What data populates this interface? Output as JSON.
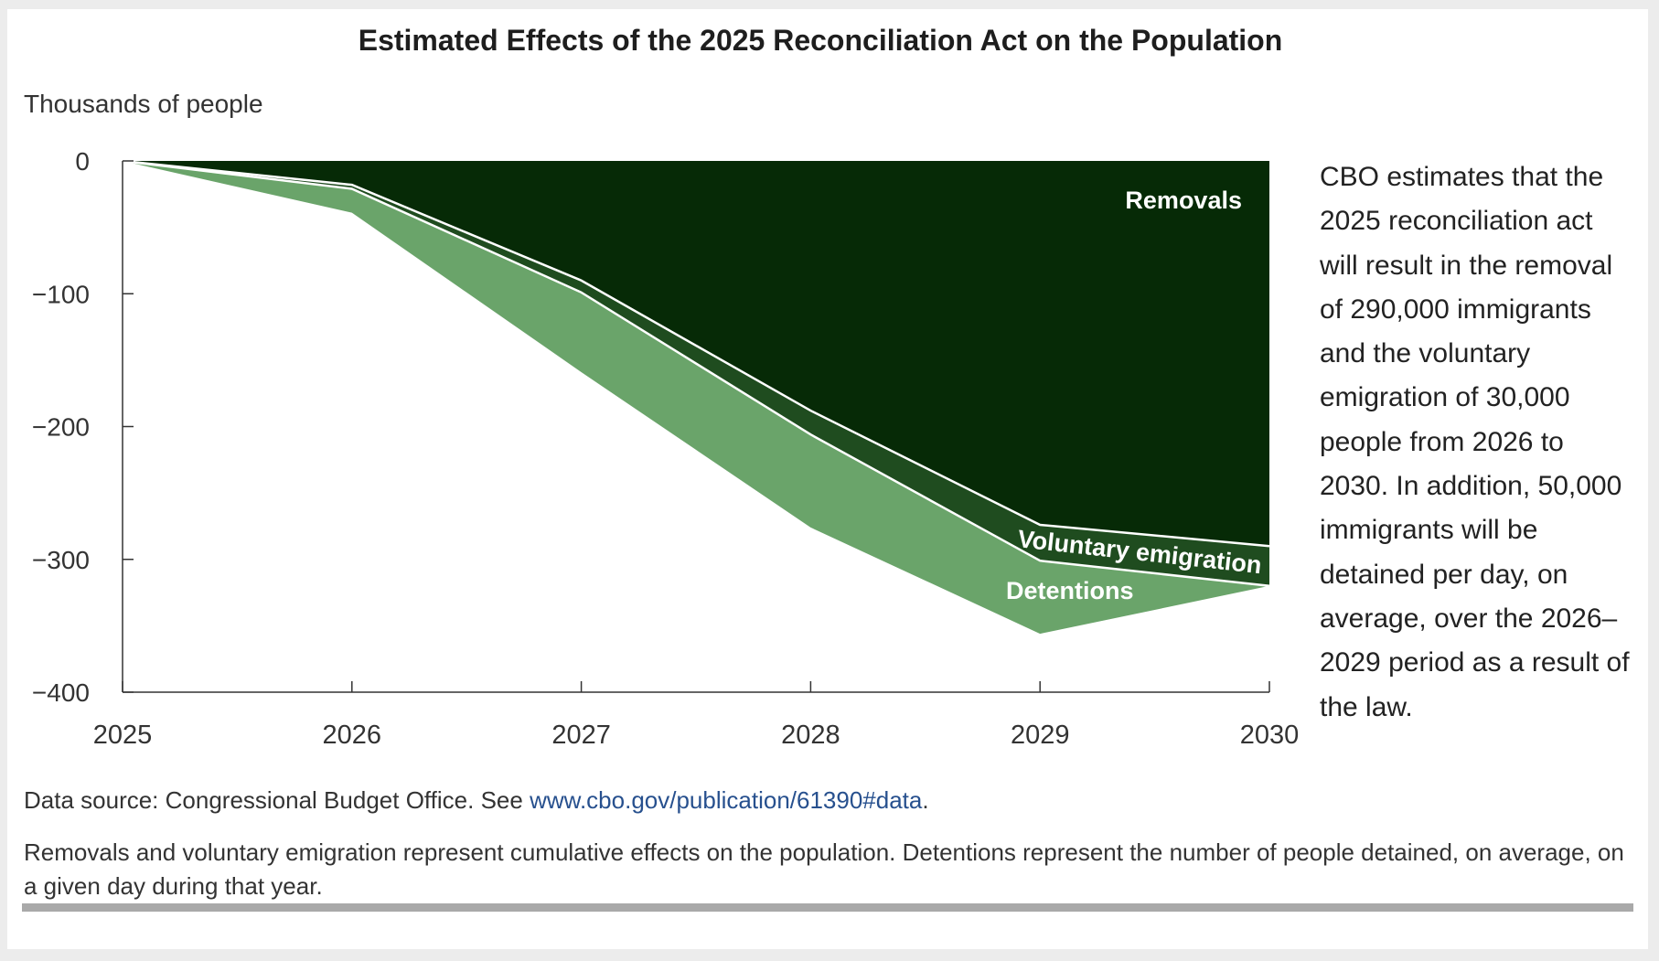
{
  "page": {
    "title": "Estimated Effects of the 2025 Reconciliation Act on the Population",
    "side_note": "CBO estimates that the 2025 reconciliation act will result in the removal of 290,000 immigrants and the voluntary emigration of 30,000 people from 2026 to 2030. In addition, 50,000 immigrants will be detained per day, on average, over the 2026–2029 period as a result of the law.",
    "source_prefix": "Data source: Congressional Budget Office. See ",
    "source_link": "www.cbo.gov/publication/61390#data",
    "source_suffix": ".",
    "footnote": "Removals and voluntary emigration represent cumulative effects on the population. Detentions represent the number of people detained, on average, on a given day during that year."
  },
  "chart_data": {
    "type": "area",
    "stacked": true,
    "ylabel": "Thousands of people",
    "x": [
      2025,
      2026,
      2027,
      2028,
      2029,
      2030
    ],
    "xlim": [
      2025,
      2030
    ],
    "ylim": [
      -400,
      0
    ],
    "yticks": [
      0,
      -100,
      -200,
      -300,
      -400
    ],
    "xticks": [
      2025,
      2026,
      2027,
      2028,
      2029,
      2030
    ],
    "series": [
      {
        "name": "Removals",
        "values": [
          0,
          -18,
          -90,
          -188,
          -274,
          -290
        ],
        "color": "#062a06"
      },
      {
        "name": "Voluntary emigration",
        "values": [
          0,
          -3,
          -9,
          -18,
          -27,
          -30
        ],
        "color": "#1f4c1f"
      },
      {
        "name": "Detentions",
        "values": [
          0,
          -18,
          -60,
          -70,
          -55,
          0
        ],
        "color": "#6aa46a"
      }
    ],
    "separator_color": "#ffffff",
    "grid": false
  }
}
